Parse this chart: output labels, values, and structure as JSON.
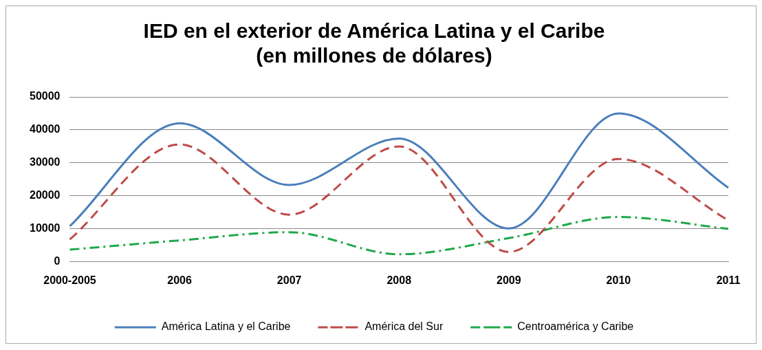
{
  "chart_data": {
    "type": "line",
    "title": "IED en el exterior de América Latina y el Caribe\n(en millones de dólares)",
    "categories": [
      "2000-2005",
      "2006",
      "2007",
      "2008",
      "2009",
      "2010",
      "2011"
    ],
    "series": [
      {
        "name": "América Latina y el Caribe",
        "color": "#4a7ebb",
        "line_style": "solid",
        "values": [
          10800,
          42000,
          23300,
          37400,
          10100,
          45000,
          22500
        ]
      },
      {
        "name": "América del Sur",
        "color": "#be4b48",
        "line_style": "dashed",
        "values": [
          6800,
          35600,
          14300,
          35000,
          3000,
          31200,
          12600
        ]
      },
      {
        "name": "Centroamérica y Caribe",
        "color": "#1fa84a",
        "line_style": "dashdot",
        "values": [
          3700,
          6500,
          9000,
          2300,
          7200,
          13600,
          10000
        ]
      }
    ],
    "ylim": [
      0,
      50000
    ],
    "yticks": [
      0,
      10000,
      20000,
      30000,
      40000,
      50000
    ],
    "grid": "y",
    "legend": "bottom",
    "marker": "none"
  }
}
